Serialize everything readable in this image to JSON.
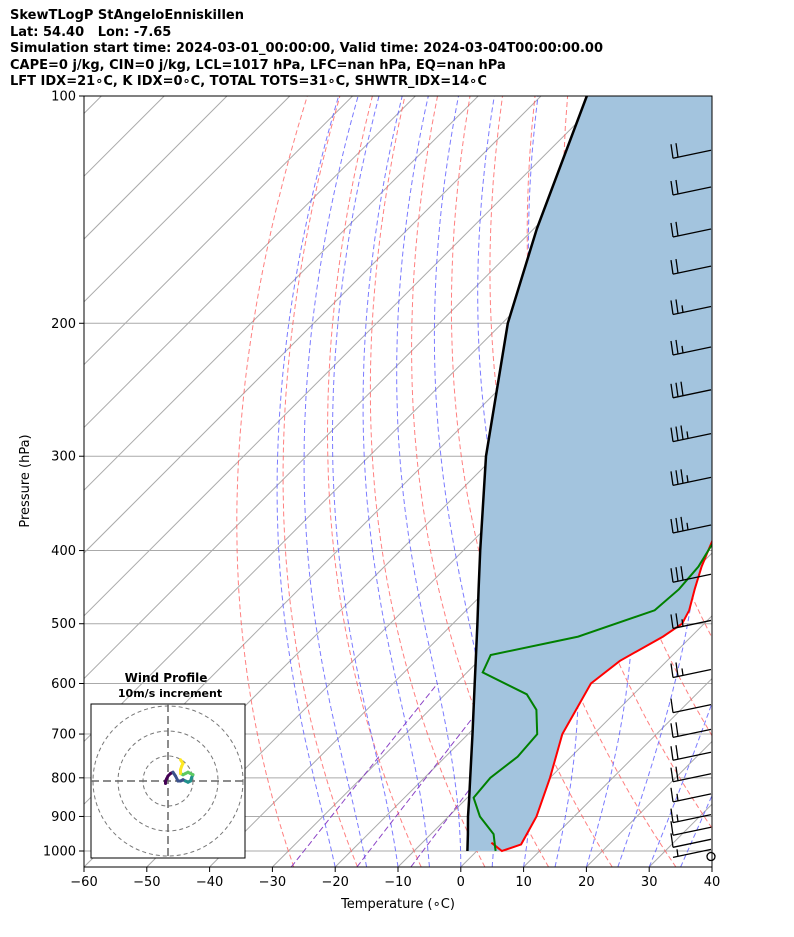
{
  "header": {
    "title": "SkewTLogP StAngeloEnniskillen",
    "location": "Lat: 54.40   Lon: -7.65",
    "times": "Simulation start time: 2024-03-01_00:00:00, Valid time: 2024-03-04T00:00:00.00",
    "indices_1": "CAPE=0 j/kg, CIN=0 j/kg, LCL=1017 hPa, LFC=nan hPa, EQ=nan hPa",
    "indices_2": "LFT IDX=21∘C, K IDX=0∘C, TOTAL TOTS=31∘C, SHWTR_IDX=14∘C"
  },
  "chart_data": {
    "type": "line",
    "subtype": "skew-T log-P diagram",
    "xlabel": "Temperature (∘C)",
    "ylabel": "Pressure (hPa)",
    "xlim": [
      -60,
      40
    ],
    "ylim": [
      1050,
      100
    ],
    "y_scale": "log",
    "x_ticks": [
      "−60",
      "−50",
      "−40",
      "−30",
      "−20",
      "−10",
      "0",
      "10",
      "20",
      "30",
      "40"
    ],
    "y_ticks": [
      "100",
      "200",
      "300",
      "400",
      "500",
      "600",
      "700",
      "800",
      "900",
      "1000"
    ],
    "grid": true,
    "colors": {
      "temperature": "#ff0000",
      "dewpoint": "#008000",
      "parcel": "#000000",
      "shade": "#a3c4de",
      "dry_adiabats": "#ff6060",
      "moist_adiabats": "#5a5aff",
      "isotherms": "#aaaaaa",
      "mixing_ratio": "#8030c0"
    },
    "series": [
      {
        "key": "temperature",
        "pressure": [
          975,
          1000,
          980,
          900,
          800,
          700,
          600,
          560,
          520,
          500,
          480,
          450,
          420,
          400,
          350,
          300,
          250,
          230,
          200,
          180,
          150,
          130,
          110,
          100
        ],
        "temperature": [
          1,
          4,
          6,
          4,
          0,
          -5,
          -8.5,
          -7.5,
          -4.5,
          -3.5,
          -4.5,
          -7,
          -9.5,
          -11,
          -15,
          -16.5,
          -16,
          -14.5,
          -9.5,
          -7,
          1,
          9,
          16,
          20
        ]
      },
      {
        "key": "dewpoint",
        "pressure": [
          975,
          1000,
          950,
          900,
          850,
          800,
          750,
          700,
          650,
          620,
          580,
          550,
          520,
          480,
          450,
          420,
          400,
          380,
          350,
          300,
          260,
          230,
          200,
          180,
          170,
          150,
          130,
          110,
          100
        ],
        "temperature": [
          1.5,
          3,
          0,
          -5,
          -9,
          -9.5,
          -8.5,
          -9,
          -13,
          -17,
          -27.5,
          -29,
          -18,
          -10,
          -9.5,
          -10,
          -11,
          -12,
          -14,
          -17,
          -18.5,
          -20.5,
          -22.5,
          -21.5,
          -20,
          -22.5,
          -20,
          -14,
          -9
        ]
      },
      {
        "key": "parcel",
        "pressure": [
          1000,
          950,
          900,
          850,
          800,
          700,
          600,
          500,
          450,
          400,
          300,
          200,
          150,
          100
        ],
        "temperature": [
          -1.5,
          -4.1,
          -6.9,
          -9.7,
          -12.7,
          -19.3,
          -27,
          -36.1,
          -41.4,
          -47.3,
          -61.4,
          -79.1,
          -89.5,
          -102.7
        ]
      }
    ],
    "wind_barbs": [
      {
        "p": 1017,
        "speed_kt": 0
      },
      {
        "p": 995,
        "speed_kt": 5
      },
      {
        "p": 965,
        "speed_kt": 10
      },
      {
        "p": 930,
        "speed_kt": 10
      },
      {
        "p": 895,
        "speed_kt": 15
      },
      {
        "p": 840,
        "speed_kt": 15
      },
      {
        "p": 790,
        "speed_kt": 20
      },
      {
        "p": 740,
        "speed_kt": 20
      },
      {
        "p": 690,
        "speed_kt": 20
      },
      {
        "p": 640,
        "speed_kt": 10
      },
      {
        "p": 575,
        "speed_kt": 25
      },
      {
        "p": 495,
        "speed_kt": 25
      },
      {
        "p": 430,
        "speed_kt": 30
      },
      {
        "p": 370,
        "speed_kt": 35
      },
      {
        "p": 320,
        "speed_kt": 35
      },
      {
        "p": 280,
        "speed_kt": 35
      },
      {
        "p": 245,
        "speed_kt": 30
      },
      {
        "p": 215,
        "speed_kt": 25
      },
      {
        "p": 190,
        "speed_kt": 25
      },
      {
        "p": 168,
        "speed_kt": 20
      },
      {
        "p": 150,
        "speed_kt": 20
      },
      {
        "p": 132,
        "speed_kt": 20
      },
      {
        "p": 118,
        "speed_kt": 20
      }
    ],
    "hodograph": {
      "title": "Wind Profile",
      "subtitle": "10m/s increment",
      "path_u": [
        -1,
        -1,
        -0.5,
        0,
        1,
        2,
        3,
        4,
        5,
        6,
        7,
        8,
        9,
        9.5,
        10,
        9,
        8,
        7,
        6,
        5,
        5,
        5.5,
        6,
        5
      ],
      "path_v": [
        -1,
        0,
        1,
        2,
        3,
        3.5,
        2,
        0,
        0,
        0.5,
        0,
        -0.5,
        0,
        1.5,
        2.5,
        3,
        3.5,
        3,
        2.5,
        3,
        4.5,
        6,
        7,
        8.5
      ]
    }
  }
}
